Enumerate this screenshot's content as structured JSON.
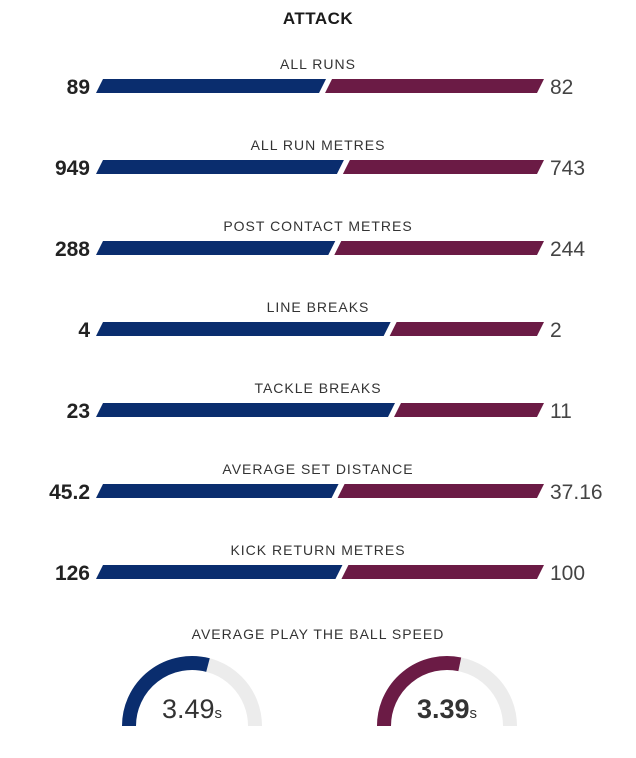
{
  "title": "ATTACK",
  "colors": {
    "home": "#0a2d6e",
    "away": "#6b1b45",
    "track": "#ececec"
  },
  "chart_data": {
    "type": "bar",
    "orientation": "horizontal-comparison",
    "series": [
      {
        "name": "",
        "color": "#0a2d6e"
      },
      {
        "name": "",
        "color": "#6b1b45"
      }
    ],
    "stats": [
      {
        "label": "ALL RUNS",
        "home": 89,
        "away": 82,
        "home_text": "89",
        "away_text": "82"
      },
      {
        "label": "ALL RUN METRES",
        "home": 949,
        "away": 743,
        "home_text": "949",
        "away_text": "743"
      },
      {
        "label": "POST CONTACT METRES",
        "home": 288,
        "away": 244,
        "home_text": "288",
        "away_text": "244"
      },
      {
        "label": "LINE BREAKS",
        "home": 4,
        "away": 2,
        "home_text": "4",
        "away_text": "2"
      },
      {
        "label": "TACKLE BREAKS",
        "home": 23,
        "away": 11,
        "home_text": "23",
        "away_text": "11"
      },
      {
        "label": "AVERAGE SET DISTANCE",
        "home": 45.2,
        "away": 37.16,
        "home_text": "45.2",
        "away_text": "37.16"
      },
      {
        "label": "KICK RETURN METRES",
        "home": 126,
        "away": 100,
        "home_text": "126",
        "away_text": "100"
      }
    ],
    "play_the_ball": {
      "label": "AVERAGE PLAY THE BALL SPEED",
      "unit": "s",
      "home": 3.49,
      "away": 3.39,
      "home_text": "3.49",
      "away_text": "3.39",
      "gauge_max": 6
    }
  }
}
